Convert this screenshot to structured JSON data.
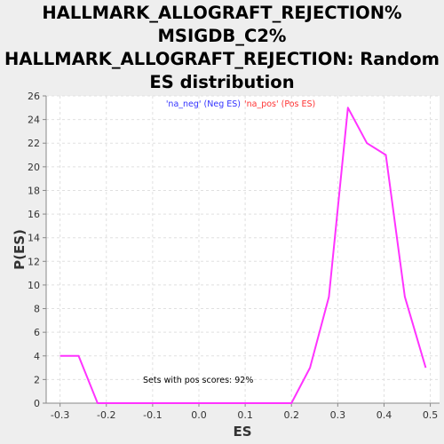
{
  "title_lines": [
    "HALLMARK_ALLOGRAFT_REJECTION%",
    "MSIGDB_C2%",
    "HALLMARK_ALLOGRAFT_REJECTION: Random",
    "ES distribution"
  ],
  "chart_data": {
    "type": "line",
    "title": "HALLMARK_ALLOGRAFT_REJECTION% MSIGDB_C2% HALLMARK_ALLOGRAFT_REJECTION: Random ES distribution",
    "xlabel": "ES",
    "ylabel": "P(ES)",
    "xlim": [
      -0.33,
      0.52
    ],
    "ylim": [
      0,
      26
    ],
    "grid": true,
    "x_ticks": [
      -0.3,
      -0.2,
      -0.1,
      0.0,
      0.1,
      0.2,
      0.3,
      0.4,
      0.5
    ],
    "x_tick_labels": [
      "-0.3",
      "-0.2",
      "-0.1",
      "0.0",
      "0.1",
      "0.2",
      "0.3",
      "0.4",
      "0.5"
    ],
    "y_ticks": [
      0,
      2,
      4,
      6,
      8,
      10,
      12,
      14,
      16,
      18,
      20,
      22,
      24,
      26
    ],
    "legend": {
      "placement": "top-center",
      "entries": [
        {
          "text": "'na_neg' (Neg ES)",
          "color": "#3333ff"
        },
        {
          "text": "'na_pos' (Pos ES)",
          "color": "#ff3333"
        }
      ]
    },
    "annotation": "Sets with pos scores: 92%",
    "series": [
      {
        "color": "#ff33ff",
        "x": [
          -0.3,
          -0.26,
          -0.219,
          -0.178,
          -0.137,
          -0.096,
          -0.055,
          -0.014,
          0.027,
          0.068,
          0.109,
          0.15,
          0.2,
          0.24,
          0.281,
          0.322,
          0.363,
          0.404,
          0.445,
          0.49
        ],
        "y": [
          4,
          4,
          0,
          0,
          0,
          0,
          0,
          0,
          0,
          0,
          0,
          0,
          0,
          3,
          9,
          25,
          22,
          21,
          9,
          3
        ]
      }
    ]
  }
}
